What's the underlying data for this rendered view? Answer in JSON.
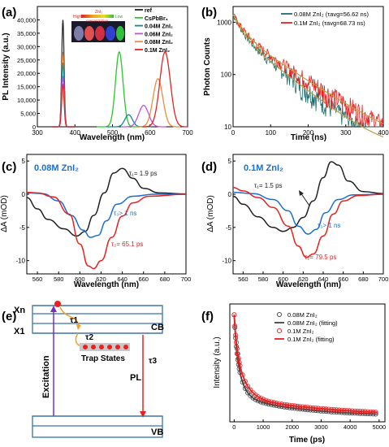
{
  "panel_letters": [
    "(a)",
    "(b)",
    "(c)",
    "(d)",
    "(e)",
    "(f)"
  ],
  "chart_data": [
    {
      "id": "a",
      "type": "line",
      "xlabel": "Wavelength (nm)",
      "ylabel": "PL Intensity (a.u.)",
      "xlim": [
        300,
        700
      ],
      "ylim": [
        0,
        45000
      ],
      "xticks": [
        300,
        400,
        500,
        600,
        700
      ],
      "yticks": [
        "0",
        "5,000",
        "10,000",
        "15,000",
        "20,000",
        "25,000",
        "30,000",
        "35,000",
        "40,000"
      ],
      "inset": {
        "label": "ZnI₂",
        "high": "High",
        "low": "Low",
        "caption": "concentration"
      },
      "legend_position": "top-right",
      "series": [
        {
          "name": "ref",
          "color": "#222222",
          "peak": 368,
          "height": 40000,
          "width": 6
        },
        {
          "name": "CsPbBr₃",
          "color": "#26c926",
          "peak": 518,
          "height": 28000,
          "width": 10
        },
        {
          "name": "0.04M ZnI₂",
          "color": "#138a8a",
          "peak": 543,
          "height": 4500,
          "width": 10
        },
        {
          "name": "0.06M ZnI₂",
          "color": "#c050e8",
          "peak": 583,
          "height": 8000,
          "width": 13
        },
        {
          "name": "0.08M ZnI₂",
          "color": "#ef8a3a",
          "peak": 621,
          "height": 18000,
          "width": 13
        },
        {
          "name": "0.1M ZnI₂",
          "color": "#e82020",
          "peak": 640,
          "height": 28000,
          "width": 14
        }
      ],
      "excitation_peaks": [
        {
          "color": "#222222",
          "height": 40000
        },
        {
          "color": "#ef8a3a",
          "height": 28000
        },
        {
          "color": "#138a8a",
          "height": 24000
        },
        {
          "color": "#c050e8",
          "height": 19000
        },
        {
          "color": "#e82020",
          "height": 16000
        }
      ]
    },
    {
      "id": "b",
      "type": "line",
      "xlabel": "Time (ns)",
      "ylabel": "Photon Counts",
      "xlim": [
        0,
        400
      ],
      "ylim": [
        10,
        2000
      ],
      "yscale": "log",
      "xticks": [
        0,
        100,
        200,
        300,
        400
      ],
      "yticks": [
        10,
        100,
        1000
      ],
      "legend_position": "top-right",
      "series": [
        {
          "name": "0.08M ZnI₂ (τavg=56.62 ns)",
          "color": "#1f6b6b",
          "tau": 56.62
        },
        {
          "name": "0.1M ZnI₂ (τavg=68.73 ns)",
          "color": "#e82020",
          "tau": 68.73
        }
      ]
    },
    {
      "id": "c",
      "type": "line",
      "title": "0.08M ZnI₂",
      "xlabel": "Wavelength (nm)",
      "ylabel": "ΔA (mOD)",
      "xlim": [
        550,
        700
      ],
      "ylim": [
        -12,
        6
      ],
      "xticks": [
        560,
        580,
        600,
        620,
        640,
        660,
        680,
        700
      ],
      "yticks": [
        -10,
        -5,
        0,
        5
      ],
      "series": [
        {
          "color": "#222222",
          "points": [
            [
              550,
              -0.5
            ],
            [
              560,
              -2.2
            ],
            [
              570,
              -3.8
            ],
            [
              585,
              -5.2
            ],
            [
              597,
              -6.3
            ],
            [
              605,
              -5.6
            ],
            [
              613,
              -3.2
            ],
            [
              623,
              0.2
            ],
            [
              632,
              3.2
            ],
            [
              640,
              3.9
            ],
            [
              650,
              2.4
            ],
            [
              660,
              0.9
            ],
            [
              675,
              0.2
            ],
            [
              700,
              0.05
            ]
          ]
        },
        {
          "color": "#1a6fd0",
          "points": [
            [
              550,
              0.2
            ],
            [
              565,
              0.1
            ],
            [
              580,
              -1.0
            ],
            [
              592,
              -3.2
            ],
            [
              603,
              -5.4
            ],
            [
              610,
              -6.5
            ],
            [
              617,
              -6.2
            ],
            [
              625,
              -4.0
            ],
            [
              635,
              -1.5
            ],
            [
              650,
              -0.3
            ],
            [
              670,
              0
            ],
            [
              700,
              0
            ]
          ]
        },
        {
          "color": "#e82020",
          "points": [
            [
              550,
              0.3
            ],
            [
              560,
              0.2
            ],
            [
              575,
              -0.4
            ],
            [
              590,
              -3.0
            ],
            [
              600,
              -7.5
            ],
            [
              608,
              -10.8
            ],
            [
              613,
              -11.2
            ],
            [
              620,
              -10.0
            ],
            [
              630,
              -6.5
            ],
            [
              640,
              -3.3
            ],
            [
              650,
              -1.3
            ],
            [
              665,
              -0.3
            ],
            [
              700,
              0
            ]
          ]
        }
      ],
      "annotations": [
        {
          "text": "τ₁= 1.9 ps",
          "color": "#222222"
        },
        {
          "text": "τ₃> 1 ns",
          "color": "#1a6fd0"
        },
        {
          "text": "τ₂= 65.1 ps",
          "color": "#e82020"
        }
      ]
    },
    {
      "id": "d",
      "type": "line",
      "title": "0.1M ZnI₂",
      "xlabel": "Wavelength (nm)",
      "ylabel": "ΔA (mOD)",
      "xlim": [
        550,
        700
      ],
      "ylim": [
        -12,
        6
      ],
      "xticks": [
        560,
        580,
        600,
        620,
        640,
        660,
        680,
        700
      ],
      "yticks": [
        -10,
        -5,
        0,
        5
      ],
      "series": [
        {
          "color": "#222222",
          "points": [
            [
              550,
              -0.3
            ],
            [
              560,
              -1.5
            ],
            [
              575,
              -3.4
            ],
            [
              590,
              -5.0
            ],
            [
              600,
              -5.6
            ],
            [
              610,
              -5.0
            ],
            [
              620,
              -3.5
            ],
            [
              630,
              -1.0
            ],
            [
              640,
              2.5
            ],
            [
              648,
              4.9
            ],
            [
              655,
              4.4
            ],
            [
              665,
              2.0
            ],
            [
              680,
              0.4
            ],
            [
              700,
              0.1
            ]
          ]
        },
        {
          "color": "#1a6fd0",
          "points": [
            [
              550,
              0.3
            ],
            [
              570,
              0.1
            ],
            [
              590,
              -0.8
            ],
            [
              605,
              -2.5
            ],
            [
              615,
              -4.8
            ],
            [
              625,
              -6.0
            ],
            [
              633,
              -5.3
            ],
            [
              642,
              -2.8
            ],
            [
              655,
              -0.8
            ],
            [
              670,
              -0.1
            ],
            [
              700,
              0
            ]
          ]
        },
        {
          "color": "#e82020",
          "points": [
            [
              550,
              1.0
            ],
            [
              560,
              0.5
            ],
            [
              575,
              -0.5
            ],
            [
              590,
              -2.0
            ],
            [
              605,
              -4.8
            ],
            [
              615,
              -7.8
            ],
            [
              623,
              -9.5
            ],
            [
              630,
              -9.0
            ],
            [
              640,
              -6.3
            ],
            [
              650,
              -3.0
            ],
            [
              660,
              -1.0
            ],
            [
              675,
              -0.2
            ],
            [
              700,
              0
            ]
          ]
        }
      ],
      "annotations": [
        {
          "text": "τ₁= 1.5 ps",
          "color": "#222222"
        },
        {
          "text": "τ₃> 1 ns",
          "color": "#1a6fd0"
        },
        {
          "text": "τ₂= 79.5 ps",
          "color": "#e82020"
        }
      ]
    },
    {
      "id": "f",
      "type": "scatter",
      "xlabel": "Time (ps)",
      "ylabel": "Intensity (a.u.)",
      "xlim": [
        -150,
        5200
      ],
      "xticks": [
        0,
        1000,
        2000,
        3000,
        4000,
        5000
      ],
      "legend_position": "top-right",
      "series": [
        {
          "name": "0.08M ZnI₂",
          "color": "#444444",
          "kind": "markers"
        },
        {
          "name": "0.08M ZnI₂ (fitting)",
          "color": "#444444",
          "kind": "line"
        },
        {
          "name": "0.1M ZnI₂",
          "color": "#e82020",
          "kind": "markers"
        },
        {
          "name": "0.1M ZnI₂ (fitting)",
          "color": "#e82020",
          "kind": "line"
        }
      ]
    }
  ],
  "diagram_e": {
    "xn": "Xn",
    "x1": "X1",
    "cb": "CB",
    "vb": "VB",
    "tau1": "τ1",
    "tau2": "τ2",
    "tau3": "τ3",
    "trap_states": "Trap States",
    "pl": "PL",
    "excitation": "Excitation"
  }
}
